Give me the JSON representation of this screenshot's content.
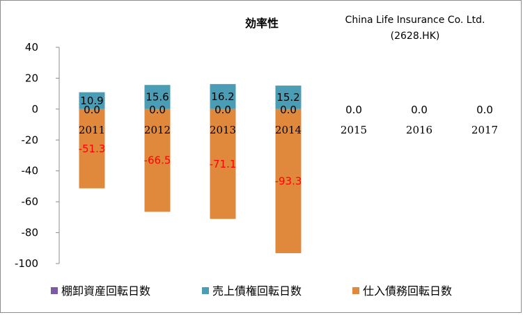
{
  "chart_data": {
    "type": "bar",
    "stacked": true,
    "title": "効率性",
    "company": [
      "China Life Insurance Co. Ltd.",
      "(2628.HK)"
    ],
    "categories": [
      "2011",
      "2012",
      "2013",
      "2014",
      "2015",
      "2016",
      "2017"
    ],
    "series": [
      {
        "name": "棚卸資産回転日数",
        "color": "#7b5aa6",
        "values": [
          0.0,
          0.0,
          0.0,
          0.0,
          0.0,
          0.0,
          0.0
        ],
        "labels": [
          "0.0",
          "0.0",
          "0.0",
          "0.0",
          "0.0",
          "0.0",
          "0.0"
        ],
        "label_color": "#000000"
      },
      {
        "name": "売上債権回転日数",
        "color": "#4a9db5",
        "values": [
          10.9,
          15.6,
          16.2,
          15.2,
          null,
          null,
          null
        ],
        "labels": [
          "10.9",
          "15.6",
          "16.2",
          "15.2",
          "",
          "",
          ""
        ],
        "label_color": "#000000"
      },
      {
        "name": "仕入債務回転日数",
        "color": "#e0893d",
        "values": [
          -51.3,
          -66.5,
          -71.1,
          -93.3,
          null,
          null,
          null
        ],
        "labels": [
          "-51.3",
          "-66.5",
          "-71.1",
          "-93.3",
          "",
          "",
          ""
        ],
        "label_color": "#ff0000"
      }
    ],
    "ylim": [
      -100,
      40
    ],
    "yticks": [
      "40",
      "20",
      "0",
      "-20",
      "-40",
      "-60",
      "-80",
      "-100"
    ],
    "ytick_values": [
      40,
      20,
      0,
      -20,
      -40,
      -60,
      -80,
      -100
    ],
    "legend_position": "bottom",
    "grid": false
  }
}
